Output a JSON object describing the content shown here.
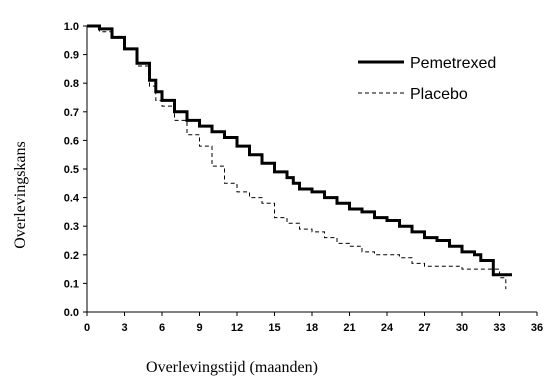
{
  "chart_data": {
    "type": "line",
    "title": "",
    "xlabel": "Overlevingstijd (maanden)",
    "ylabel": "Overlevingskans",
    "xlim": [
      0,
      36
    ],
    "ylim": [
      0,
      1.0
    ],
    "x_ticks": [
      "0",
      "3",
      "6",
      "9",
      "12",
      "15",
      "18",
      "21",
      "24",
      "27",
      "30",
      "33",
      "36"
    ],
    "y_ticks": [
      "0.0",
      "0.1",
      "0.2",
      "0.3",
      "0.4",
      "0.5",
      "0.6",
      "0.7",
      "0.8",
      "0.9",
      "1.0"
    ],
    "grid": false,
    "legend_position": "top-right",
    "series": [
      {
        "name": "Pemetrexed",
        "style": "solid",
        "color": "#000000",
        "x": [
          0,
          1,
          2,
          3,
          4,
          5,
          5.5,
          6,
          7,
          8,
          9,
          10,
          11,
          12,
          13,
          14,
          15,
          16,
          16.5,
          17,
          18,
          19,
          20,
          21,
          22,
          23,
          24,
          25,
          26,
          27,
          28,
          29,
          30,
          31,
          31.5,
          32,
          32.5,
          33,
          34
        ],
        "values": [
          1.0,
          0.99,
          0.96,
          0.92,
          0.87,
          0.81,
          0.77,
          0.74,
          0.7,
          0.67,
          0.65,
          0.63,
          0.61,
          0.58,
          0.55,
          0.52,
          0.49,
          0.47,
          0.45,
          0.43,
          0.42,
          0.4,
          0.38,
          0.36,
          0.35,
          0.33,
          0.32,
          0.3,
          0.28,
          0.26,
          0.25,
          0.23,
          0.21,
          0.2,
          0.18,
          0.18,
          0.13,
          0.13,
          0.13
        ]
      },
      {
        "name": "Placebo",
        "style": "dashed",
        "color": "#000000",
        "x": [
          0,
          1,
          2,
          3,
          4,
          5,
          5.5,
          6,
          7,
          8,
          9,
          10,
          11,
          12,
          13,
          14,
          15,
          16,
          17,
          18,
          19,
          20,
          21,
          22,
          23,
          24,
          25,
          26,
          27,
          28,
          29,
          30,
          31,
          32,
          33,
          33.5
        ],
        "values": [
          1.0,
          0.98,
          0.96,
          0.92,
          0.86,
          0.79,
          0.74,
          0.72,
          0.67,
          0.62,
          0.58,
          0.51,
          0.45,
          0.42,
          0.4,
          0.38,
          0.33,
          0.31,
          0.29,
          0.28,
          0.26,
          0.24,
          0.23,
          0.21,
          0.2,
          0.2,
          0.19,
          0.17,
          0.16,
          0.16,
          0.16,
          0.15,
          0.15,
          0.15,
          0.12,
          0.08
        ]
      }
    ]
  }
}
